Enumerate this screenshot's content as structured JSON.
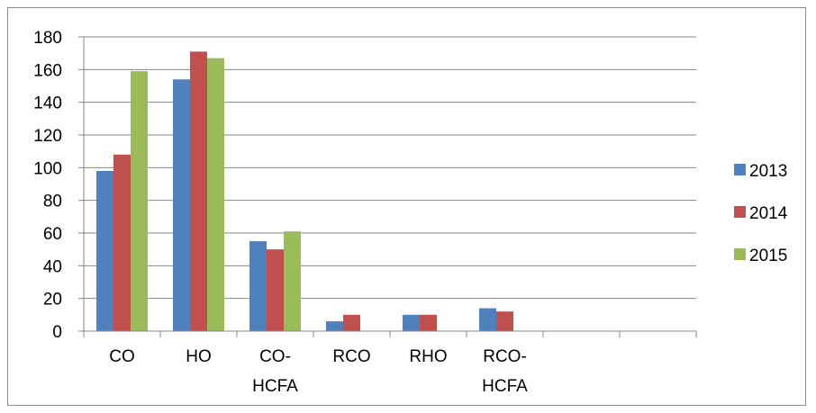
{
  "chart_data": {
    "type": "bar",
    "categories": [
      [
        "CO"
      ],
      [
        "HO"
      ],
      [
        "CO-",
        "HCFA"
      ],
      [
        "RCO"
      ],
      [
        "RHO"
      ],
      [
        "RCO-",
        "HCFA"
      ],
      [
        ""
      ],
      [
        ""
      ]
    ],
    "series": [
      {
        "name": "2013",
        "color": "#4f81bd",
        "values": [
          98,
          154,
          55,
          6,
          10,
          14,
          null,
          null
        ]
      },
      {
        "name": "2014",
        "color": "#c0504d",
        "values": [
          108,
          171,
          50,
          10,
          10,
          12,
          null,
          null
        ]
      },
      {
        "name": "2015",
        "color": "#9bbb59",
        "values": [
          159,
          167,
          61,
          null,
          null,
          null,
          null,
          null
        ]
      }
    ],
    "yticks": [
      "0",
      "20",
      "40",
      "60",
      "80",
      "100",
      "120",
      "140",
      "160",
      "180"
    ],
    "ylim": [
      0,
      180
    ],
    "grid": true,
    "legend_position": "right"
  }
}
